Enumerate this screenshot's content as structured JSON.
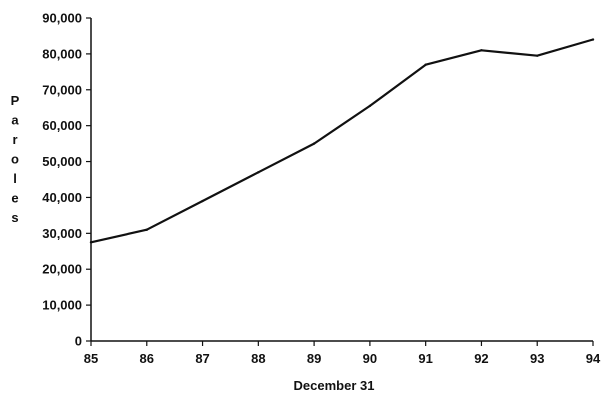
{
  "chart_data": {
    "type": "line",
    "title": "",
    "xlabel": "December 31",
    "ylabel": "Paroles",
    "x": [
      "85",
      "86",
      "87",
      "88",
      "89",
      "90",
      "91",
      "92",
      "93",
      "94"
    ],
    "x_tick_labels": [
      "85",
      "86",
      "87",
      "88",
      "89",
      "90",
      "91",
      "92",
      "93",
      "94"
    ],
    "xlim": [
      85,
      94
    ],
    "ylim": [
      0,
      90000
    ],
    "y_ticks": [
      0,
      10000,
      20000,
      30000,
      40000,
      50000,
      60000,
      70000,
      80000,
      90000
    ],
    "y_tick_labels": [
      "0",
      "10,000",
      "20,000",
      "30,000",
      "40,000",
      "50,000",
      "60,000",
      "70,000",
      "80,000",
      "90,000"
    ],
    "grid": false,
    "legend": "none",
    "series": [
      {
        "values": [
          27500,
          31000,
          39000,
          47000,
          55000,
          65500,
          77000,
          81000,
          79500,
          84000
        ]
      }
    ],
    "line_color": "#111111"
  }
}
